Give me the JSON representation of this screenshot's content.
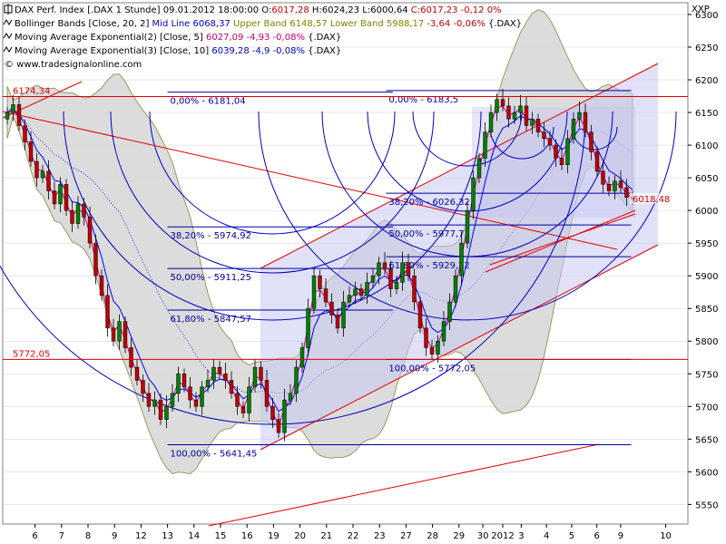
{
  "chart_data": {
    "type": "candlestick",
    "currency_symbol": "XXP",
    "legend": [
      {
        "icon": "chart-icon",
        "parts": [
          {
            "text": "DAX Perf. Index [.DAX  1 Stunde] 09.01.2012 18:00:00 O:",
            "color": "#000000"
          },
          {
            "text": "6017,28",
            "color": "#c00000"
          },
          {
            "text": " H:6024,23 L:6000,64 ",
            "color": "#000000"
          },
          {
            "text": "C:6017,23 -0,12 0%",
            "color": "#c00000"
          }
        ]
      },
      {
        "icon": "indicator-icon",
        "parts": [
          {
            "text": "Bollinger Bands [Close, 20, 2] ",
            "color": "#000000"
          },
          {
            "text": "Mid Line 6068,37",
            "color": "#0000c0"
          },
          {
            "text": " Upper Band 6148,57",
            "color": "#808000"
          },
          {
            "text": " Lower Band 5988,17 ",
            "color": "#808000"
          },
          {
            "text": "-3,64 -0,06%",
            "color": "#c00000"
          },
          {
            "text": " {.DAX}",
            "color": "#000000"
          }
        ]
      },
      {
        "icon": "indicator-icon",
        "parts": [
          {
            "text": "Moving Average Exponential(2) [Close, 5] ",
            "color": "#000000"
          },
          {
            "text": "6027,09 -4,93 -0,08%",
            "color": "#c00070"
          },
          {
            "text": " {.DAX}",
            "color": "#000000"
          }
        ]
      },
      {
        "icon": "indicator-icon",
        "parts": [
          {
            "text": "Moving Average Exponential(3) [Close, 10] ",
            "color": "#000000"
          },
          {
            "text": "6039,28 -4,9 -0,08%",
            "color": "#0000c0"
          },
          {
            "text": " {.DAX}",
            "color": "#000000"
          }
        ]
      },
      {
        "icon": "copyright-icon",
        "parts": [
          {
            "text": "© www.tradesignalonline.com",
            "color": "#000000"
          }
        ]
      }
    ],
    "y_ticks": [
      5550,
      5600,
      5650,
      5700,
      5750,
      5800,
      5850,
      5900,
      5950,
      6000,
      6050,
      6100,
      6150,
      6200,
      6250,
      6300
    ],
    "y_tick_labels": [
      "5550",
      "5600",
      "5650",
      "5700",
      "5750",
      "5800",
      "5850",
      "5900",
      "5950",
      "6000",
      "6050",
      "6100",
      "6150",
      "6200",
      "6250",
      "6300"
    ],
    "ylim": [
      5520,
      6318
    ],
    "xlim": [
      0,
      46
    ],
    "x_ticks": [
      {
        "x": 1,
        "label": "6"
      },
      {
        "x": 3,
        "label": "7"
      },
      {
        "x": 5,
        "label": "8"
      },
      {
        "x": 7,
        "label": "9"
      },
      {
        "x": 9,
        "label": "12"
      },
      {
        "x": 11,
        "label": "13"
      },
      {
        "x": 13,
        "label": "14"
      },
      {
        "x": 15,
        "label": "15"
      },
      {
        "x": 17,
        "label": "16"
      },
      {
        "x": 19,
        "label": "19"
      },
      {
        "x": 21,
        "label": "20"
      },
      {
        "x": 23,
        "label": "21"
      },
      {
        "x": 25,
        "label": "22"
      },
      {
        "x": 27,
        "label": "23"
      },
      {
        "x": 29,
        "label": "27"
      },
      {
        "x": 31,
        "label": "28"
      },
      {
        "x": 33,
        "label": "29"
      },
      {
        "x": 34.8,
        "label": "30"
      },
      {
        "x": 36.3,
        "label": "2012"
      },
      {
        "x": 37.7,
        "label": "3"
      },
      {
        "x": 39.6,
        "label": "4"
      },
      {
        "x": 41.5,
        "label": "5"
      },
      {
        "x": 43.4,
        "label": "6"
      },
      {
        "x": 45.2,
        "label": "9"
      },
      {
        "x": 48.6,
        "label": "10"
      }
    ],
    "candles_close": [
      6150,
      6162,
      6130,
      6105,
      6075,
      6050,
      6060,
      6030,
      6010,
      6040,
      6000,
      5980,
      6010,
      5990,
      5950,
      5900,
      5870,
      5820,
      5800,
      5830,
      5790,
      5760,
      5740,
      5720,
      5700,
      5710,
      5680,
      5700,
      5720,
      5750,
      5730,
      5710,
      5700,
      5730,
      5740,
      5760,
      5750,
      5740,
      5720,
      5700,
      5690,
      5730,
      5760,
      5740,
      5700,
      5680,
      5660,
      5710,
      5720,
      5760,
      5790,
      5850,
      5900,
      5880,
      5860,
      5840,
      5820,
      5860,
      5870,
      5880,
      5870,
      5890,
      5900,
      5920,
      5910,
      5880,
      5890,
      5920,
      5900,
      5860,
      5820,
      5790,
      5780,
      5800,
      5830,
      5860,
      5900,
      5950,
      6000,
      6050,
      6080,
      6120,
      6150,
      6170,
      6160,
      6140,
      6150,
      6160,
      6130,
      6140,
      6120,
      6110,
      6100,
      6080,
      6070,
      6110,
      6140,
      6150,
      6120,
      6090,
      6060,
      6040,
      6030,
      6045,
      6035,
      6020,
      6017
    ],
    "bollinger_mid_label": "Mid Line",
    "horizontal_levels": [
      {
        "value": 6181.04,
        "label": "0,00% - 6181,04",
        "x_from": 11,
        "x_to": 28,
        "label_x": 11.2
      },
      {
        "value": 5974.92,
        "label": "38,20% - 5974,92",
        "x_from": 11,
        "x_to": 28,
        "label_x": 11.2
      },
      {
        "value": 5911.25,
        "label": "50,00% - 5911,25",
        "x_from": 11,
        "x_to": 28,
        "label_x": 11.2
      },
      {
        "value": 5847.57,
        "label": "61,80% - 5847,57",
        "x_from": 11,
        "x_to": 28,
        "label_x": 11.2
      },
      {
        "value": 5641.45,
        "label": "100,00% - 5641,45",
        "x_from": 11,
        "x_to": 46,
        "label_x": 11.2
      },
      {
        "value": 6183.5,
        "label": "0,00% - 6183,5",
        "x_from": 27.5,
        "x_to": 46,
        "label_x": 27.7
      },
      {
        "value": 6026.32,
        "label": "38,20% - 6026,32",
        "x_from": 27.5,
        "x_to": 46,
        "label_x": 27.7
      },
      {
        "value": 5977.77,
        "label": "50,00% - 5977,77",
        "x_from": 27.5,
        "x_to": 46,
        "label_x": 27.7
      },
      {
        "value": 5929.22,
        "label": "61,80% - 5929,22",
        "x_from": 27.5,
        "x_to": 46,
        "label_x": 27.7
      },
      {
        "value": 5772.05,
        "label": "100,00% - 5772,05",
        "x_from": 27.5,
        "x_to": 46,
        "label_x": 27.7
      }
    ],
    "red_levels": [
      {
        "value": 6174.34,
        "label": "6174,34"
      },
      {
        "value": 5772.05,
        "label": "5772,05"
      }
    ],
    "last_price_label": "6018,48",
    "last_price_value": 6018.48,
    "colors": {
      "candle_up": "#008000",
      "candle_down": "#c00000",
      "bollinger_fill": "#d8d8d8",
      "bollinger_line": "#9a9a60",
      "fib_line": "#0000a0",
      "channel_line": "#e00000",
      "channel_fill": "#c8c8f0",
      "ema_fast": "#d0008a",
      "ema_slow": "#0000ff",
      "arc": "#0000c0",
      "axis_text": "#000000",
      "grid": "#d0d0d0"
    }
  }
}
